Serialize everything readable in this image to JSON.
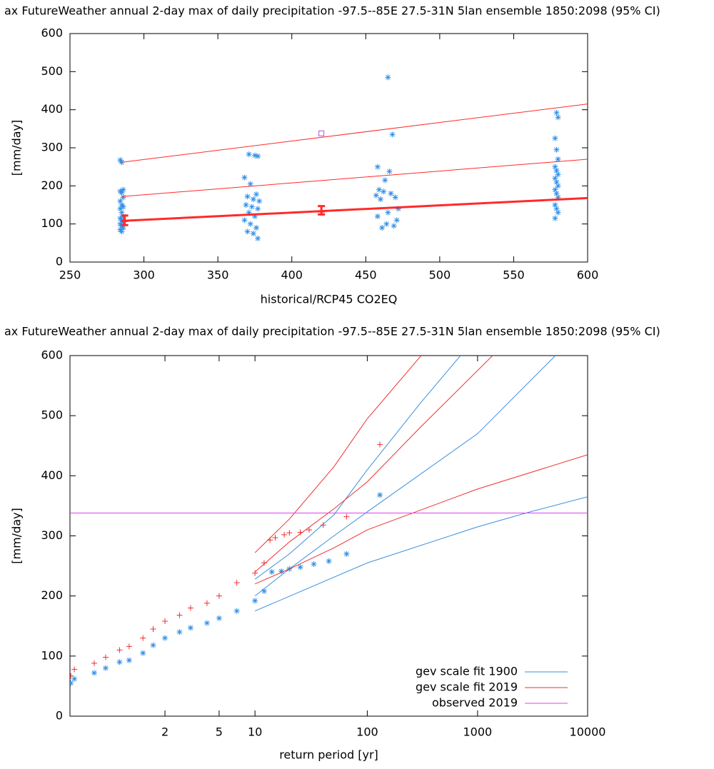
{
  "chart_data": [
    {
      "type": "scatter",
      "title": "ax FutureWeather annual 2-day max of daily precipitation -97.5--85E 27.5-31N 5lan ensemble 1850:2098 (95% CI)",
      "xlabel": "historical/RCP45 CO2EQ",
      "ylabel": "[mm/day]",
      "xlim": [
        250,
        600
      ],
      "ylim": [
        0,
        600
      ],
      "xticks": [
        250,
        300,
        350,
        400,
        450,
        500,
        550,
        600
      ],
      "yticks": [
        0,
        100,
        200,
        300,
        400,
        500,
        600
      ],
      "series": [
        {
          "color": "#2f8fe8",
          "marker": "star",
          "x": [
            284,
            285,
            286,
            284,
            285,
            286,
            284,
            285,
            286,
            284,
            285,
            286,
            284,
            285,
            286,
            284,
            285,
            286,
            284,
            285,
            371,
            375,
            377,
            368,
            372,
            376,
            370,
            374,
            378,
            369,
            373,
            377,
            371,
            375,
            368,
            372,
            376,
            370,
            374,
            377,
            465,
            468,
            458,
            466,
            463,
            459,
            462,
            467,
            457,
            470,
            460,
            472,
            465,
            458,
            471,
            464,
            469,
            461,
            579,
            580,
            578,
            579,
            580,
            578,
            579,
            580,
            578,
            579,
            580,
            578,
            579,
            580,
            578,
            579,
            580,
            578
          ],
          "values": [
            268,
            262,
            190,
            186,
            182,
            170,
            160,
            150,
            145,
            140,
            130,
            120,
            115,
            110,
            105,
            100,
            95,
            90,
            85,
            80,
            283,
            280,
            278,
            222,
            205,
            178,
            172,
            165,
            160,
            150,
            145,
            140,
            130,
            120,
            110,
            100,
            90,
            80,
            75,
            62,
            485,
            335,
            250,
            238,
            215,
            190,
            185,
            180,
            175,
            170,
            165,
            140,
            130,
            120,
            110,
            100,
            95,
            90,
            392,
            380,
            325,
            295,
            270,
            250,
            240,
            230,
            220,
            210,
            200,
            190,
            180,
            170,
            150,
            140,
            130,
            115
          ]
        },
        {
          "color": "#ff2a2a",
          "marker": "line",
          "width": 1,
          "x": [
            285,
            600
          ],
          "values": [
            262,
            415
          ]
        },
        {
          "color": "#ff2a2a",
          "marker": "line",
          "width": 1,
          "x": [
            285,
            600
          ],
          "values": [
            172,
            270
          ]
        },
        {
          "color": "#ff2a2a",
          "marker": "line",
          "width": 3,
          "x": [
            285,
            600
          ],
          "values": [
            108,
            168
          ]
        },
        {
          "color": "#b050e0",
          "marker": "square",
          "x": [
            420
          ],
          "values": [
            338
          ]
        }
      ],
      "errorbars": {
        "color": "#ff2a2a",
        "x": [
          287,
          420
        ],
        "values": [
          108,
          133
        ],
        "low": [
          97,
          125
        ],
        "high": [
          122,
          147
        ]
      }
    },
    {
      "type": "scatter",
      "title": "ax FutureWeather annual 2-day max of daily precipitation -97.5--85E 27.5-31N 5lan ensemble 1850:2098 (95% CI)",
      "xlabel": "return period [yr]",
      "ylabel": "[mm/day]",
      "xscale": "gumbel",
      "xlim": [
        1.0064,
        10000
      ],
      "ylim": [
        0,
        600
      ],
      "xticks": [
        2,
        5,
        10,
        100,
        1000,
        10000
      ],
      "yticks": [
        0,
        100,
        200,
        300,
        400,
        500,
        600
      ],
      "legend": "lower right",
      "series": [
        {
          "color": "#2f8fe8",
          "marker": "star",
          "x": [
            1.007,
            1.01,
            1.05,
            1.1,
            1.2,
            1.3,
            1.5,
            1.7,
            2,
            2.5,
            3,
            4,
            5,
            7,
            10,
            12,
            14,
            17,
            20,
            25,
            33,
            45,
            65,
            130
          ],
          "values": [
            55,
            62,
            72,
            80,
            90,
            93,
            105,
            118,
            130,
            140,
            147,
            155,
            163,
            175,
            192,
            208,
            240,
            241,
            245,
            248,
            253,
            258,
            270,
            368
          ]
        },
        {
          "name": "gev scale fit 1900",
          "color": "#3a8fdd",
          "marker": "line",
          "x": [
            10,
            20,
            50,
            100,
            300,
            700
          ],
          "values": [
            228,
            270,
            335,
            410,
            520,
            600
          ]
        },
        {
          "color": "#3a8fdd",
          "marker": "line",
          "x": [
            10,
            20,
            50,
            100,
            1000,
            5100
          ],
          "values": [
            200,
            245,
            300,
            340,
            470,
            600
          ]
        },
        {
          "color": "#3a8fdd",
          "marker": "line",
          "x": [
            10,
            100,
            1000,
            3000,
            10000
          ],
          "values": [
            175,
            255,
            315,
            340,
            365
          ]
        },
        {
          "color": "#ee3030",
          "marker": "plus",
          "x": [
            1.007,
            1.01,
            1.05,
            1.1,
            1.2,
            1.3,
            1.5,
            1.7,
            2,
            2.5,
            3,
            4,
            5,
            7,
            10,
            12,
            13.5,
            15,
            18,
            20,
            25,
            30,
            40,
            65,
            130
          ],
          "values": [
            67,
            78,
            88,
            98,
            110,
            116,
            130,
            145,
            158,
            168,
            180,
            188,
            200,
            222,
            238,
            255,
            293,
            297,
            302,
            305,
            306,
            310,
            318,
            332,
            452
          ]
        },
        {
          "name": "gev scale fit 2019",
          "color": "#ee3030",
          "marker": "line",
          "x": [
            10,
            20,
            50,
            100,
            308
          ],
          "values": [
            272,
            328,
            415,
            495,
            600
          ]
        },
        {
          "color": "#ee3030",
          "marker": "line",
          "x": [
            10,
            20,
            50,
            100,
            300,
            1370
          ],
          "values": [
            240,
            290,
            345,
            390,
            480,
            600
          ]
        },
        {
          "color": "#ee3030",
          "marker": "line",
          "x": [
            10,
            20,
            50,
            100,
            1000,
            10000
          ],
          "values": [
            220,
            245,
            280,
            310,
            378,
            435
          ]
        },
        {
          "name": "observed 2019",
          "color": "#dd44ee",
          "marker": "line",
          "x": [
            1.0064,
            10000
          ],
          "values": [
            338,
            338
          ]
        }
      ]
    }
  ]
}
